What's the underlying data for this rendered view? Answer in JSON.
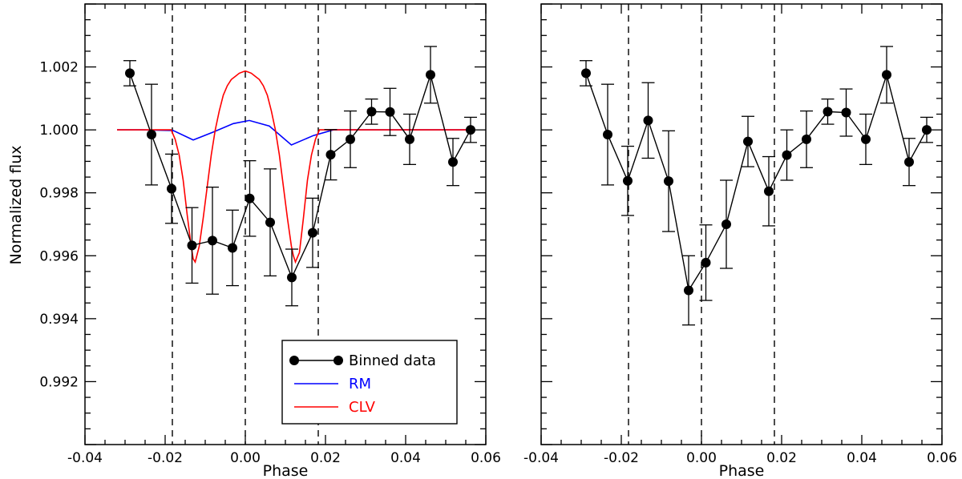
{
  "chart_data": [
    {
      "type": "line",
      "panel": "left",
      "xlabel": "Phase",
      "ylabel": "Normalized flux",
      "xlim": [
        -0.04,
        0.06
      ],
      "ylim": [
        0.99,
        1.004
      ],
      "x_ticks": [
        -0.04,
        -0.02,
        0.0,
        0.02,
        0.04,
        0.06
      ],
      "x_tick_labels": [
        "-0.04",
        "-0.02",
        "0.00",
        "0.02",
        "0.04",
        "0.06"
      ],
      "y_ticks": [
        0.992,
        0.994,
        0.996,
        0.998,
        1.0,
        1.002
      ],
      "y_tick_labels": [
        "0.992",
        "0.994",
        "0.996",
        "0.998",
        "1.000",
        "1.002"
      ],
      "vlines": [
        -0.0182,
        0.0,
        0.0182
      ],
      "legend": {
        "placement": "bottom-right",
        "entries": [
          {
            "label": "Binned data",
            "color": "#000000",
            "marker": "circle"
          },
          {
            "label": "RM",
            "color": "#0000ff"
          },
          {
            "label": "CLV",
            "color": "#ff0000"
          }
        ]
      },
      "series": [
        {
          "name": "Binned data",
          "color": "#000000",
          "marker": "circle",
          "x": [
            -0.0288,
            -0.0234,
            -0.0184,
            -0.0133,
            -0.0082,
            -0.0032,
            0.0011,
            0.0062,
            0.0116,
            0.0168,
            0.0213,
            0.0262,
            0.0315,
            0.0361,
            0.041,
            0.0462,
            0.0518,
            0.0562
          ],
          "y": [
            1.0018,
            0.99985,
            0.99813,
            0.99633,
            0.99648,
            0.99625,
            0.99782,
            0.99706,
            0.99531,
            0.99673,
            0.99921,
            0.9997,
            1.00058,
            1.00057,
            0.9997,
            1.00175,
            0.99898,
            1.0
          ],
          "yerr": [
            0.0004,
            0.0016,
            0.0011,
            0.0012,
            0.0017,
            0.0012,
            0.0012,
            0.0017,
            0.0009,
            0.0011,
            0.0008,
            0.0009,
            0.0004,
            0.00075,
            0.0008,
            0.0009,
            0.00075,
            0.0004
          ]
        },
        {
          "name": "RM",
          "color": "#0000ff",
          "x": [
            -0.032,
            -0.026,
            -0.018,
            -0.013,
            -0.008,
            -0.003,
            0.001,
            0.006,
            0.0115,
            0.017,
            0.022,
            0.056
          ],
          "y": [
            1.0,
            1.0,
            0.99998,
            0.99968,
            0.99993,
            1.0002,
            1.0003,
            1.00012,
            0.99952,
            0.99982,
            1.0,
            1.0
          ]
        },
        {
          "name": "CLV",
          "color": "#ff0000",
          "x": [
            -0.032,
            -0.0185,
            -0.0175,
            -0.0165,
            -0.0155,
            -0.0145,
            -0.0135,
            -0.013,
            -0.0125,
            -0.0115,
            -0.0105,
            -0.0095,
            -0.0085,
            -0.0075,
            -0.0065,
            -0.0055,
            -0.0045,
            -0.0035,
            -0.0025,
            -0.0015,
            -0.0005,
            0.0,
            0.0005,
            0.0015,
            0.0025,
            0.0035,
            0.0045,
            0.0055,
            0.0065,
            0.0075,
            0.0085,
            0.0095,
            0.0105,
            0.0115,
            0.012,
            0.0125,
            0.0135,
            0.0145,
            0.0155,
            0.0165,
            0.0175,
            0.0185,
            0.056
          ],
          "y": [
            1.0,
            1.0,
            0.9997,
            0.9992,
            0.9984,
            0.9973,
            0.9963,
            0.9959,
            0.9958,
            0.9963,
            0.9972,
            0.9982,
            0.9992,
            1.0,
            1.0006,
            1.0011,
            1.0014,
            1.0016,
            1.0017,
            1.0018,
            1.00185,
            1.00187,
            1.00185,
            1.0018,
            1.0017,
            1.0016,
            1.0014,
            1.0011,
            1.0006,
            1.0,
            0.9992,
            0.9982,
            0.9972,
            0.9963,
            0.996,
            0.9958,
            0.9961,
            0.9972,
            0.9984,
            0.9992,
            0.9997,
            1.0,
            1.0
          ]
        }
      ]
    },
    {
      "type": "line",
      "panel": "right",
      "xlabel": "Phase",
      "ylabel": "",
      "xlim": [
        -0.04,
        0.06
      ],
      "ylim": [
        0.99,
        1.004
      ],
      "x_ticks": [
        -0.04,
        -0.02,
        0.0,
        0.02,
        0.04,
        0.06
      ],
      "x_tick_labels": [
        "-0.04",
        "-0.02",
        "0.00",
        "0.02",
        "0.04",
        "0.06"
      ],
      "y_ticks": [
        0.992,
        0.994,
        0.996,
        0.998,
        1.0,
        1.002
      ],
      "vlines": [
        -0.0182,
        0.0,
        0.0182
      ],
      "series": [
        {
          "name": "Binned data",
          "color": "#000000",
          "marker": "circle",
          "x": [
            -0.0288,
            -0.0234,
            -0.0184,
            -0.0133,
            -0.0082,
            -0.0032,
            0.0011,
            0.0062,
            0.0116,
            0.0168,
            0.0213,
            0.0262,
            0.0315,
            0.0361,
            0.041,
            0.0462,
            0.0518,
            0.0562
          ],
          "y": [
            1.0018,
            0.99985,
            0.99838,
            1.0003,
            0.99837,
            0.9949,
            0.99578,
            0.997,
            0.99963,
            0.99805,
            0.9992,
            0.9997,
            1.00058,
            1.00055,
            0.9997,
            1.00175,
            0.99898,
            1.0
          ],
          "yerr": [
            0.0004,
            0.0016,
            0.0011,
            0.0012,
            0.0016,
            0.0011,
            0.0012,
            0.0014,
            0.0008,
            0.0011,
            0.0008,
            0.0009,
            0.0004,
            0.00075,
            0.0008,
            0.0009,
            0.00075,
            0.0004
          ]
        }
      ]
    }
  ]
}
